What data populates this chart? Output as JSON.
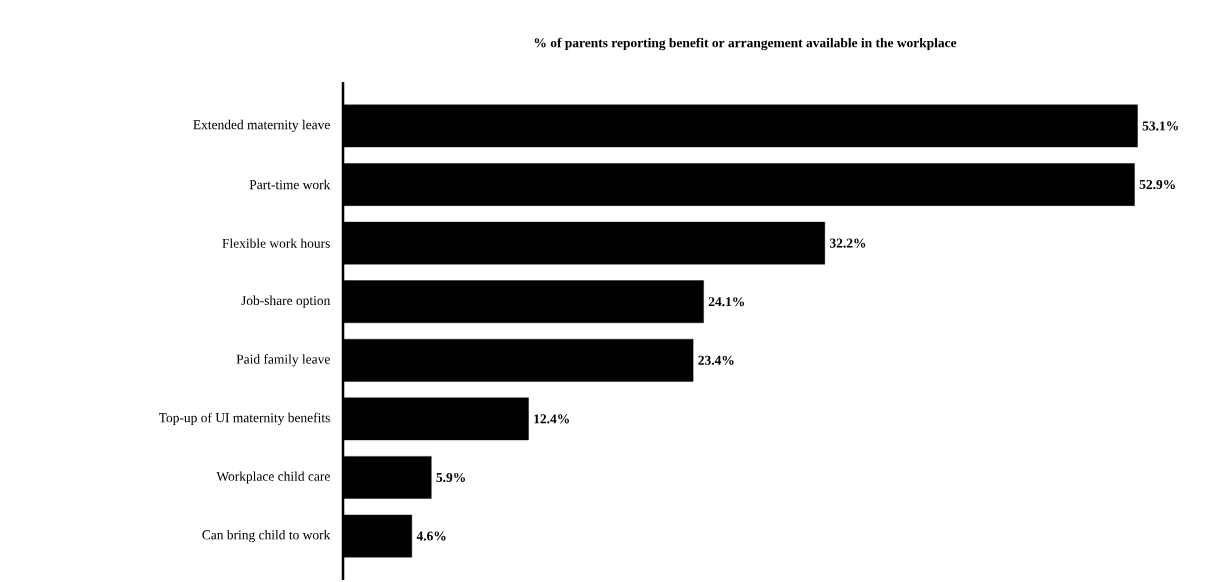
{
  "chart_data": {
    "type": "bar",
    "orientation": "horizontal",
    "title": "% of parents reporting benefit or arrangement available in the workplace",
    "categories": [
      "Extended maternity leave",
      "Part-time work",
      "Flexible work hours",
      "Job-share option",
      "Paid family leave",
      "Top-up of UI maternity benefits",
      "Workplace child care",
      "Can bring child to work"
    ],
    "values": [
      53.1,
      52.9,
      32.2,
      24.1,
      23.4,
      12.4,
      5.9,
      4.6
    ],
    "value_labels": [
      "53.1%",
      "52.9%",
      "32.2%",
      "24.1%",
      "23.4%",
      "12.4%",
      "5.9%",
      "4.6%"
    ],
    "color": "#000000"
  }
}
